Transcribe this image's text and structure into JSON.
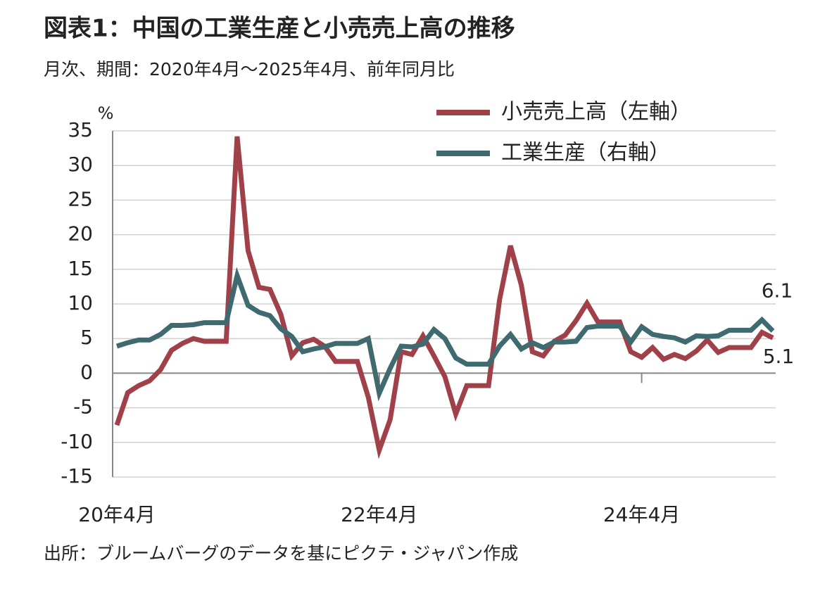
{
  "chart_data": {
    "type": "line",
    "title": "図表1：中国の工業生産と小売売上高の推移",
    "subtitle": "月次、期間：2020年4月～2025年4月、前年同月比",
    "y_unit": "%",
    "source": "出所：ブルームバーグのデータを基にピクテ・ジャパン作成",
    "categories": [
      "20年4月",
      null,
      null,
      null,
      null,
      null,
      null,
      null,
      null,
      null,
      null,
      null,
      null,
      null,
      null,
      null,
      null,
      null,
      null,
      null,
      null,
      null,
      null,
      null,
      "22年4月",
      null,
      null,
      null,
      null,
      null,
      null,
      null,
      null,
      null,
      null,
      null,
      null,
      null,
      null,
      null,
      null,
      null,
      null,
      null,
      null,
      null,
      null,
      null,
      "24年4月",
      null,
      null,
      null,
      null,
      null,
      null,
      null,
      null,
      null,
      null,
      null,
      null
    ],
    "series": [
      {
        "name": "小売売上高（左軸）",
        "color": "#a0414a",
        "values": [
          -7.5,
          -2.8,
          -1.8,
          -1.1,
          0.5,
          3.3,
          4.3,
          5.0,
          4.6,
          4.6,
          4.6,
          34.2,
          17.7,
          12.4,
          12.1,
          8.5,
          2.5,
          4.4,
          4.9,
          3.9,
          1.7,
          1.7,
          1.7,
          -3.5,
          -11.1,
          -6.7,
          3.1,
          2.7,
          5.4,
          2.5,
          -0.5,
          -5.9,
          -1.8,
          -1.8,
          -1.8,
          10.6,
          18.4,
          12.7,
          3.1,
          2.5,
          4.6,
          5.5,
          7.6,
          10.1,
          7.4,
          7.4,
          7.4,
          3.1,
          2.3,
          3.7,
          2.0,
          2.7,
          2.1,
          3.2,
          4.8,
          3.0,
          3.7,
          3.7,
          3.7,
          5.9,
          5.1
        ]
      },
      {
        "name": "工業生産（右軸）",
        "color": "#3f6b70",
        "values": [
          3.9,
          4.4,
          4.8,
          4.8,
          5.6,
          6.9,
          6.9,
          7.0,
          7.3,
          7.3,
          7.3,
          14.1,
          9.8,
          8.8,
          8.3,
          6.4,
          5.3,
          3.1,
          3.5,
          3.8,
          4.3,
          4.3,
          4.3,
          5.0,
          -2.9,
          0.7,
          3.9,
          3.8,
          4.2,
          6.3,
          5.0,
          2.2,
          1.3,
          1.3,
          1.3,
          3.9,
          5.6,
          3.5,
          4.4,
          3.7,
          4.5,
          4.5,
          4.6,
          6.6,
          6.8,
          6.8,
          6.8,
          4.5,
          6.7,
          5.6,
          5.3,
          5.1,
          4.5,
          5.4,
          5.3,
          5.4,
          6.2,
          6.2,
          6.2,
          7.7,
          6.1
        ]
      }
    ],
    "ylim": [
      -15,
      35
    ],
    "yticks": [
      35,
      30,
      25,
      20,
      15,
      10,
      5,
      0,
      -5,
      -10,
      -15
    ],
    "grid": true,
    "legend": "top-right"
  }
}
